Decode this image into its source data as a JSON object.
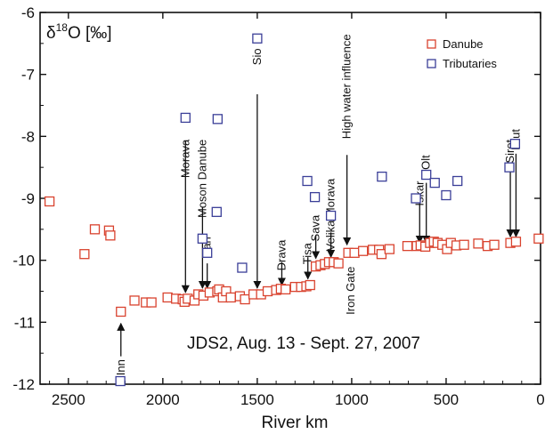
{
  "chart_data": {
    "type": "scatter",
    "ylabel_parts": {
      "delta": "δ",
      "sup": "18",
      "rest": "O [‰]"
    },
    "xlabel": "River km",
    "caption": "JDS2, Aug. 13 - Sept. 27, 2007",
    "xlim": [
      2650,
      0
    ],
    "ylim": [
      -12,
      -6
    ],
    "x_ticks": [
      2500,
      2000,
      1500,
      1000,
      500,
      0
    ],
    "y_ticks": [
      -12,
      -11,
      -10,
      -9,
      -8,
      -7,
      -6
    ],
    "legend": {
      "position": "top-right",
      "items": [
        "Danube",
        "Tributaries"
      ]
    },
    "colors": {
      "Danube": "#d9432f",
      "Tributaries": "#3b3f98",
      "axis": "#111111"
    },
    "series": [
      {
        "name": "Danube",
        "points": [
          [
            2600,
            -9.05
          ],
          [
            2415,
            -9.9
          ],
          [
            2360,
            -9.5
          ],
          [
            2285,
            -9.52
          ],
          [
            2278,
            -9.6
          ],
          [
            2222,
            -10.83
          ],
          [
            2150,
            -10.65
          ],
          [
            2090,
            -10.68
          ],
          [
            2060,
            -10.68
          ],
          [
            1975,
            -10.6
          ],
          [
            1930,
            -10.62
          ],
          [
            1895,
            -10.63
          ],
          [
            1885,
            -10.67
          ],
          [
            1868,
            -10.62
          ],
          [
            1832,
            -10.65
          ],
          [
            1812,
            -10.55
          ],
          [
            1785,
            -10.57
          ],
          [
            1752,
            -10.52
          ],
          [
            1712,
            -10.5
          ],
          [
            1702,
            -10.47
          ],
          [
            1682,
            -10.6
          ],
          [
            1665,
            -10.5
          ],
          [
            1640,
            -10.6
          ],
          [
            1592,
            -10.58
          ],
          [
            1565,
            -10.63
          ],
          [
            1520,
            -10.55
          ],
          [
            1480,
            -10.55
          ],
          [
            1445,
            -10.5
          ],
          [
            1400,
            -10.48
          ],
          [
            1375,
            -10.46
          ],
          [
            1350,
            -10.47
          ],
          [
            1300,
            -10.43
          ],
          [
            1268,
            -10.43
          ],
          [
            1240,
            -10.42
          ],
          [
            1220,
            -10.4
          ],
          [
            1190,
            -10.1
          ],
          [
            1165,
            -10.08
          ],
          [
            1142,
            -10.06
          ],
          [
            1120,
            -10.03
          ],
          [
            1095,
            -10.03
          ],
          [
            1070,
            -10.05
          ],
          [
            1018,
            -9.88
          ],
          [
            985,
            -9.88
          ],
          [
            940,
            -9.85
          ],
          [
            888,
            -9.83
          ],
          [
            855,
            -9.83
          ],
          [
            842,
            -9.9
          ],
          [
            800,
            -9.82
          ],
          [
            705,
            -9.77
          ],
          [
            655,
            -9.77
          ],
          [
            635,
            -9.76
          ],
          [
            610,
            -9.78
          ],
          [
            585,
            -9.72
          ],
          [
            565,
            -9.7
          ],
          [
            545,
            -9.72
          ],
          [
            520,
            -9.75
          ],
          [
            495,
            -9.82
          ],
          [
            475,
            -9.72
          ],
          [
            445,
            -9.76
          ],
          [
            405,
            -9.75
          ],
          [
            330,
            -9.73
          ],
          [
            280,
            -9.77
          ],
          [
            245,
            -9.75
          ],
          [
            160,
            -9.72
          ],
          [
            130,
            -9.7
          ],
          [
            10,
            -9.65
          ]
        ]
      },
      {
        "name": "Tributaries",
        "points": [
          [
            2225,
            -11.95
          ],
          [
            1880,
            -7.7
          ],
          [
            1710,
            -7.72
          ],
          [
            1500,
            -6.42
          ],
          [
            1715,
            -9.22
          ],
          [
            1790,
            -9.65
          ],
          [
            1765,
            -9.88
          ],
          [
            1580,
            -10.12
          ],
          [
            1235,
            -8.72
          ],
          [
            1195,
            -8.98
          ],
          [
            1110,
            -9.28
          ],
          [
            840,
            -8.65
          ],
          [
            660,
            -9.0
          ],
          [
            605,
            -8.62
          ],
          [
            560,
            -8.75
          ],
          [
            500,
            -8.95
          ],
          [
            440,
            -8.72
          ],
          [
            165,
            -8.5
          ],
          [
            135,
            -8.12
          ]
        ]
      }
    ],
    "annotations": [
      {
        "text": "Inn",
        "x": 2222,
        "type": "up",
        "y_from": -11.55,
        "y_to": -11.02,
        "label_y": -11.6
      },
      {
        "text": "Morava",
        "x": 1880,
        "type": "down",
        "y_from": -8.08,
        "y_to": -10.52,
        "label_y": -8.05
      },
      {
        "text": "Moson Danube",
        "x": 1790,
        "type": "down",
        "y_from": -9.15,
        "y_to": -10.45,
        "label_y": -8.05
      },
      {
        "text": "Vah",
        "x": 1765,
        "type": "down",
        "y_from": -10.05,
        "y_to": -10.45,
        "label_y": -9.62
      },
      {
        "text": "Sio",
        "x": 1500,
        "type": "down",
        "y_from": -7.32,
        "y_to": -10.45,
        "label_y": -6.58
      },
      {
        "text": "Drava",
        "x": 1370,
        "type": "down",
        "y_from": -10.03,
        "y_to": -10.4,
        "label_y": -9.67
      },
      {
        "text": "Tisa",
        "x": 1232,
        "type": "down",
        "y_from": -9.95,
        "y_to": -10.3,
        "label_y": -9.72
      },
      {
        "text": "Sava",
        "x": 1190,
        "type": "down",
        "y_from": -9.6,
        "y_to": -9.97,
        "label_y": -9.27
      },
      {
        "text": "Velika Morava",
        "x": 1110,
        "type": "down",
        "y_from": -9.55,
        "y_to": -9.95,
        "label_y": -8.68
      },
      {
        "text": "High water influence",
        "x": 1025,
        "type": "down",
        "y_from": -8.3,
        "y_to": -9.75,
        "label_y": -6.35
      },
      {
        "text": "Iron Gate",
        "x": 1005,
        "type": "label",
        "label_y": -10.1
      },
      {
        "text": "Iskar",
        "x": 640,
        "type": "down",
        "y_from": -9.08,
        "y_to": -9.72,
        "label_y": -8.72
      },
      {
        "text": "Olt",
        "x": 605,
        "type": "down",
        "y_from": -8.75,
        "y_to": -9.72,
        "label_y": -8.3
      },
      {
        "text": "Siret",
        "x": 160,
        "type": "down",
        "y_from": -8.55,
        "y_to": -9.62,
        "label_y": -8.05
      },
      {
        "text": "Prut",
        "x": 130,
        "type": "down",
        "y_from": -8.28,
        "y_to": -9.62,
        "label_y": -7.88
      }
    ]
  }
}
